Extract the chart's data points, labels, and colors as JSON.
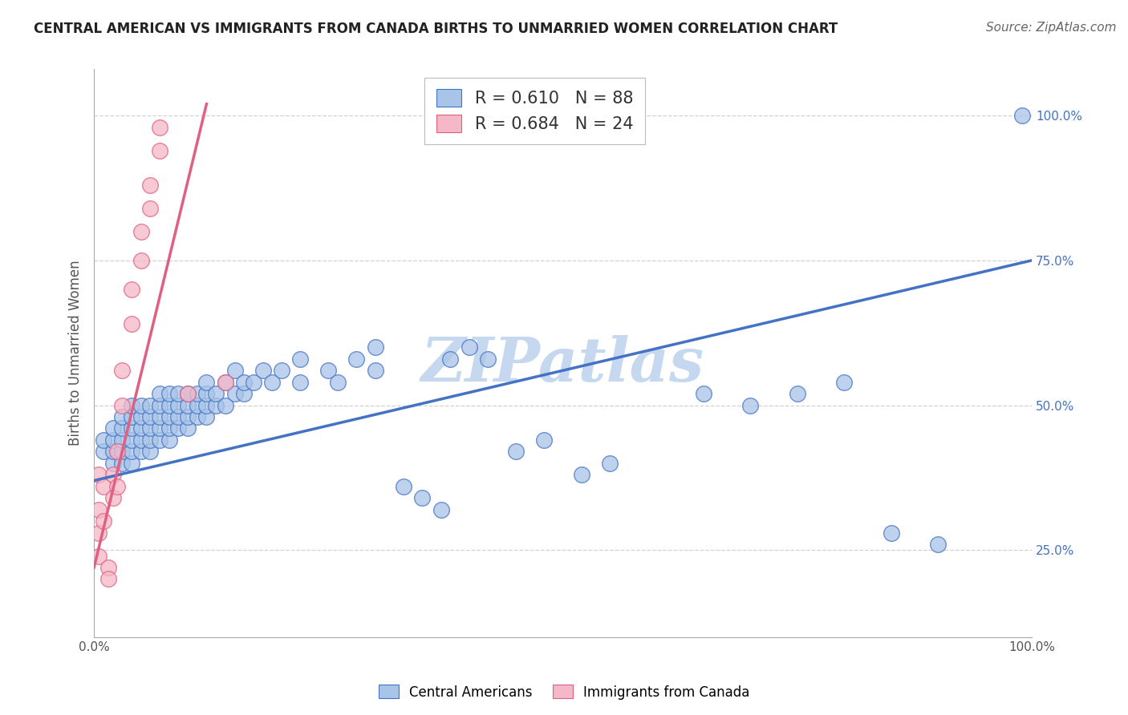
{
  "title": "CENTRAL AMERICAN VS IMMIGRANTS FROM CANADA BIRTHS TO UNMARRIED WOMEN CORRELATION CHART",
  "source": "Source: ZipAtlas.com",
  "ylabel": "Births to Unmarried Women",
  "watermark": "ZIPatlas",
  "blue_R": 0.61,
  "blue_N": 88,
  "pink_R": 0.684,
  "pink_N": 24,
  "blue_color": "#a8c4e8",
  "pink_color": "#f5b8c8",
  "blue_line_color": "#4472c4",
  "pink_line_color": "#e06080",
  "blue_scatter": [
    [
      0.01,
      0.42
    ],
    [
      0.01,
      0.44
    ],
    [
      0.02,
      0.4
    ],
    [
      0.02,
      0.42
    ],
    [
      0.02,
      0.44
    ],
    [
      0.02,
      0.46
    ],
    [
      0.03,
      0.4
    ],
    [
      0.03,
      0.42
    ],
    [
      0.03,
      0.44
    ],
    [
      0.03,
      0.46
    ],
    [
      0.03,
      0.48
    ],
    [
      0.04,
      0.4
    ],
    [
      0.04,
      0.42
    ],
    [
      0.04,
      0.44
    ],
    [
      0.04,
      0.46
    ],
    [
      0.04,
      0.48
    ],
    [
      0.04,
      0.5
    ],
    [
      0.05,
      0.42
    ],
    [
      0.05,
      0.44
    ],
    [
      0.05,
      0.46
    ],
    [
      0.05,
      0.48
    ],
    [
      0.05,
      0.5
    ],
    [
      0.06,
      0.42
    ],
    [
      0.06,
      0.44
    ],
    [
      0.06,
      0.46
    ],
    [
      0.06,
      0.48
    ],
    [
      0.06,
      0.5
    ],
    [
      0.07,
      0.44
    ],
    [
      0.07,
      0.46
    ],
    [
      0.07,
      0.48
    ],
    [
      0.07,
      0.5
    ],
    [
      0.07,
      0.52
    ],
    [
      0.08,
      0.44
    ],
    [
      0.08,
      0.46
    ],
    [
      0.08,
      0.48
    ],
    [
      0.08,
      0.5
    ],
    [
      0.08,
      0.52
    ],
    [
      0.09,
      0.46
    ],
    [
      0.09,
      0.48
    ],
    [
      0.09,
      0.5
    ],
    [
      0.09,
      0.52
    ],
    [
      0.1,
      0.46
    ],
    [
      0.1,
      0.48
    ],
    [
      0.1,
      0.5
    ],
    [
      0.1,
      0.52
    ],
    [
      0.11,
      0.48
    ],
    [
      0.11,
      0.5
    ],
    [
      0.11,
      0.52
    ],
    [
      0.12,
      0.48
    ],
    [
      0.12,
      0.5
    ],
    [
      0.12,
      0.52
    ],
    [
      0.12,
      0.54
    ],
    [
      0.13,
      0.5
    ],
    [
      0.13,
      0.52
    ],
    [
      0.14,
      0.5
    ],
    [
      0.14,
      0.54
    ],
    [
      0.15,
      0.52
    ],
    [
      0.15,
      0.56
    ],
    [
      0.16,
      0.52
    ],
    [
      0.16,
      0.54
    ],
    [
      0.17,
      0.54
    ],
    [
      0.18,
      0.56
    ],
    [
      0.19,
      0.54
    ],
    [
      0.2,
      0.56
    ],
    [
      0.22,
      0.54
    ],
    [
      0.22,
      0.58
    ],
    [
      0.25,
      0.56
    ],
    [
      0.26,
      0.54
    ],
    [
      0.28,
      0.58
    ],
    [
      0.3,
      0.56
    ],
    [
      0.3,
      0.6
    ],
    [
      0.33,
      0.36
    ],
    [
      0.35,
      0.34
    ],
    [
      0.37,
      0.32
    ],
    [
      0.38,
      0.58
    ],
    [
      0.4,
      0.6
    ],
    [
      0.42,
      0.58
    ],
    [
      0.45,
      0.42
    ],
    [
      0.48,
      0.44
    ],
    [
      0.52,
      0.38
    ],
    [
      0.55,
      0.4
    ],
    [
      0.65,
      0.52
    ],
    [
      0.7,
      0.5
    ],
    [
      0.75,
      0.52
    ],
    [
      0.8,
      0.54
    ],
    [
      0.85,
      0.28
    ],
    [
      0.9,
      0.26
    ],
    [
      0.99,
      1.0
    ]
  ],
  "pink_scatter": [
    [
      0.005,
      0.38
    ],
    [
      0.005,
      0.32
    ],
    [
      0.005,
      0.28
    ],
    [
      0.005,
      0.24
    ],
    [
      0.01,
      0.36
    ],
    [
      0.01,
      0.3
    ],
    [
      0.015,
      0.22
    ],
    [
      0.015,
      0.2
    ],
    [
      0.02,
      0.38
    ],
    [
      0.02,
      0.34
    ],
    [
      0.025,
      0.42
    ],
    [
      0.025,
      0.36
    ],
    [
      0.03,
      0.5
    ],
    [
      0.03,
      0.56
    ],
    [
      0.04,
      0.64
    ],
    [
      0.04,
      0.7
    ],
    [
      0.05,
      0.75
    ],
    [
      0.05,
      0.8
    ],
    [
      0.06,
      0.84
    ],
    [
      0.06,
      0.88
    ],
    [
      0.07,
      0.94
    ],
    [
      0.07,
      0.98
    ],
    [
      0.1,
      0.52
    ],
    [
      0.14,
      0.54
    ]
  ],
  "blue_trend_x": [
    0.0,
    1.0
  ],
  "blue_trend_y": [
    0.37,
    0.75
  ],
  "pink_trend_x": [
    0.0,
    0.12
  ],
  "pink_trend_y": [
    0.22,
    1.02
  ],
  "xmin": 0.0,
  "xmax": 1.0,
  "ymin": 0.1,
  "ymax": 1.08,
  "yticks": [
    0.25,
    0.5,
    0.75,
    1.0
  ],
  "ytick_labels": [
    "25.0%",
    "50.0%",
    "75.0%",
    "100.0%"
  ],
  "xticks": [
    0.0,
    1.0
  ],
  "xtick_labels": [
    "0.0%",
    "100.0%"
  ],
  "background_color": "#ffffff",
  "grid_color": "#cccccc",
  "watermark_color": "#c5d8f0",
  "title_fontsize": 12,
  "source_fontsize": 11,
  "axis_label_fontsize": 12,
  "tick_fontsize": 11,
  "legend_fontsize": 15,
  "watermark_fontsize": 55
}
